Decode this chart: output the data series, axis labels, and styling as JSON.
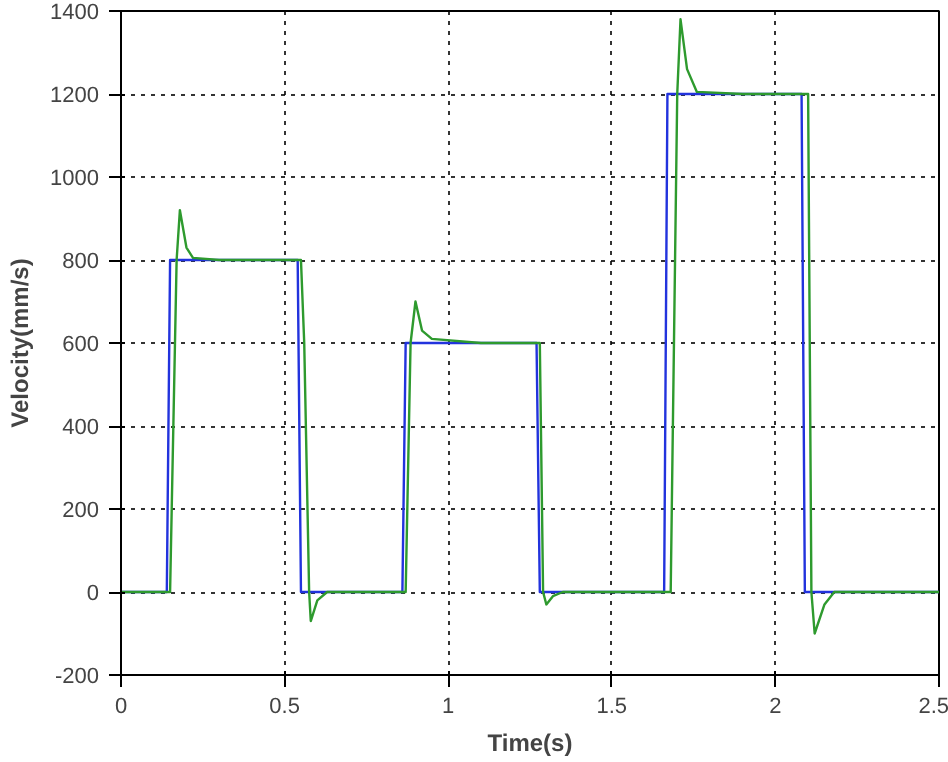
{
  "chart_data": {
    "type": "line",
    "xlabel": "Time(s)",
    "ylabel": "Velocity(mm/s)",
    "xlim": [
      0,
      2.5
    ],
    "ylim": [
      -200,
      1400
    ],
    "xticks": [
      0,
      0.5,
      1,
      1.5,
      2,
      2.5
    ],
    "yticks": [
      -200,
      0,
      200,
      400,
      600,
      800,
      1000,
      1200,
      1400
    ],
    "grid": true,
    "series": [
      {
        "color": "#2233dd",
        "x": [
          0,
          0.14,
          0.15,
          0.54,
          0.55,
          0.86,
          0.87,
          1.27,
          1.28,
          1.66,
          1.67,
          2.08,
          2.09,
          2.5
        ],
        "values": [
          0,
          0,
          800,
          800,
          0,
          0,
          600,
          600,
          0,
          0,
          1200,
          1200,
          0,
          0
        ]
      },
      {
        "color": "#2e9a2e",
        "x": [
          0,
          0.15,
          0.17,
          0.18,
          0.2,
          0.22,
          0.3,
          0.4,
          0.55,
          0.56,
          0.575,
          0.58,
          0.6,
          0.63,
          0.87,
          0.885,
          0.9,
          0.92,
          0.95,
          1.1,
          1.28,
          1.29,
          1.3,
          1.32,
          1.35,
          1.68,
          1.7,
          1.71,
          1.73,
          1.76,
          1.9,
          2.09,
          2.1,
          2.11,
          2.12,
          2.15,
          2.18,
          2.5
        ],
        "values": [
          0,
          0,
          800,
          920,
          830,
          805,
          800,
          800,
          800,
          600,
          0,
          -70,
          -20,
          0,
          0,
          600,
          700,
          630,
          610,
          600,
          600,
          0,
          -30,
          -10,
          0,
          0,
          1200,
          1380,
          1260,
          1205,
          1200,
          1200,
          1200,
          0,
          -100,
          -30,
          0,
          0
        ]
      }
    ]
  }
}
